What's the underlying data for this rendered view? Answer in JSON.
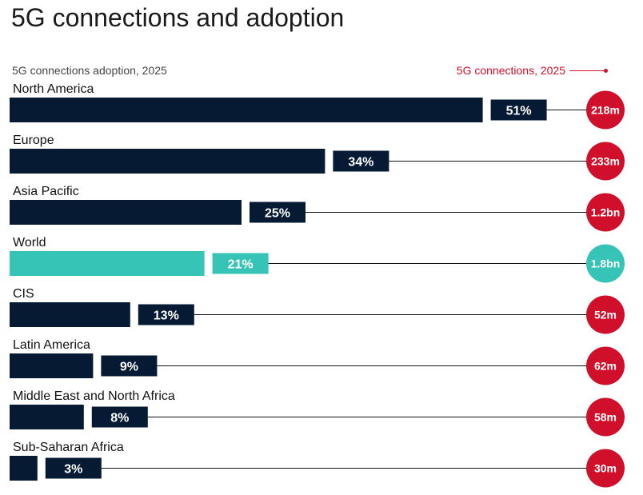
{
  "page": {
    "title": "5G connections and adoption"
  },
  "legend": {
    "adoption_label": "5G connections adoption, 2025",
    "connections_label": "5G connections, 2025"
  },
  "colors": {
    "bar": "#061a33",
    "highlight": "#35c4b5",
    "connections": "#d0102a",
    "line": "#111111"
  },
  "chart_data": {
    "type": "bar",
    "orientation": "horizontal",
    "title": "5G connections and adoption",
    "categories": [
      "North America",
      "Europe",
      "Asia Pacific",
      "World",
      "CIS",
      "Latin America",
      "Middle East and North Africa",
      "Sub-Saharan Africa"
    ],
    "series": [
      {
        "name": "5G connections adoption, 2025",
        "values": [
          51,
          34,
          25,
          21,
          13,
          9,
          8,
          3
        ],
        "labels": [
          "51%",
          "34%",
          "25%",
          "21%",
          "13%",
          "9%",
          "8%",
          "3%"
        ]
      },
      {
        "name": "5G connections, 2025",
        "labels": [
          "218m",
          "233m",
          "1.2bn",
          "1.8bn",
          "52m",
          "62m",
          "58m",
          "30m"
        ]
      }
    ],
    "highlight_category": "World",
    "xlim": [
      0,
      100
    ],
    "grid": false
  }
}
